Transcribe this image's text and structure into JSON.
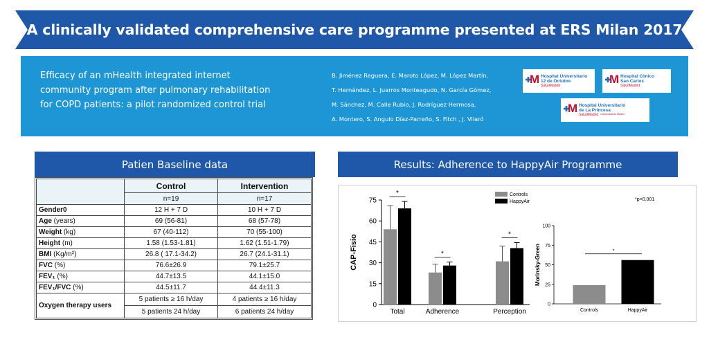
{
  "banner": {
    "title": "A clinically validated comprehensive care programme presented at ERS Milan 2017"
  },
  "study": {
    "title_lines": [
      "Efficacy of an mHealth integrated internet",
      "community program after pulmonary rehabilitation",
      "for COPD patients: a pilot randomized control trial"
    ],
    "authors": [
      "B. Jiménez Reguera, E. Maroto López, M. López Martín,",
      "T. Hernández, L. Juarros Monteagudo, N. García Gómez,",
      "M. Sánchez,  M. Calle Rubio, J. Rodríguez Hermosa,",
      "A. Montero, S. Angulo Díaz-Parreño, S. Fitch , J. Vilaró"
    ]
  },
  "logos": [
    {
      "name_1": "Hospital Universitario",
      "name_2": "12 de Octubre",
      "sub": "SaludMadrid"
    },
    {
      "name_1": "Hospital Clínico",
      "name_2": "San Carlos",
      "sub": "SaludMadrid"
    },
    {
      "name_1": "Hospital Universitario",
      "name_2": "de La Princesa",
      "sub": "SaludMadrid",
      "extra": "Comunidad de Madrid"
    }
  ],
  "baseline": {
    "header": "Patien Baseline data",
    "groups": [
      "Control",
      "Intervention"
    ],
    "n": [
      "n=19",
      "n=17"
    ],
    "rows": [
      {
        "label": "Gender0",
        "unit": "",
        "control": "12 H + 7 D",
        "intervention": "10 H + 7 D"
      },
      {
        "label": "Age",
        "unit": "   (years)",
        "control": "69  (56-81)",
        "intervention": "68  (57-78)"
      },
      {
        "label": "Weight",
        "unit": "  (kg)",
        "control": "67  (40-112)",
        "intervention": "70  (55-100)"
      },
      {
        "label": "Height",
        "unit": " (m)",
        "control": "1.58  (1.53-1.81)",
        "intervention": "1.62  (1.51-1.79)"
      },
      {
        "label": "BMI",
        "unit": "  (Kg/m²)",
        "control": "26.8  ( 17.1-34.2)",
        "intervention": "26.7  (24.1-31.1)"
      },
      {
        "label": "FVC",
        "unit": "  (%)",
        "control": "76.6±26.9",
        "intervention": "79.1±25.7"
      },
      {
        "label": "FEV₁",
        "unit": " (%)",
        "control": "44.7±13.5",
        "intervention": "44.1±15.0"
      },
      {
        "label": "FEV₁/FVC",
        "unit": " (%)",
        "control": "44.5±11.7",
        "intervention": "44.4±11.3"
      }
    ],
    "oxygen": {
      "label": "Oxygen therapy users",
      "control": [
        "5 patients    ≥ 16 h/day",
        "5 patients  24 h/day"
      ],
      "intervention": [
        "4 patients    ≥ 16 h/day",
        "6 patients 24 h/day"
      ]
    }
  },
  "results": {
    "header": "Results: Adherence to HappyAir Programme",
    "colors": {
      "controls": "#8c8c8c",
      "happyair": "#000000"
    },
    "chart_data": [
      {
        "type": "bar",
        "ylabel": "CAP-Fisio",
        "ylim": [
          0,
          75
        ],
        "yticks": [
          "0",
          "15",
          "30",
          "45",
          "60",
          "75"
        ],
        "categories": [
          "Total",
          "Adherence",
          "Perception"
        ],
        "series": [
          {
            "name": "Controls",
            "values": [
              54,
              23,
              31
            ],
            "errors": [
              17,
              6,
              11
            ]
          },
          {
            "name": "HappyAir",
            "values": [
              69,
              28,
              40.5
            ],
            "errors": [
              5,
              2.5,
              4
            ]
          }
        ],
        "significance": [
          "*",
          "*",
          "*"
        ],
        "legend": "top-right",
        "note": "*p<0.001"
      },
      {
        "type": "bar",
        "ylabel": "Morinsky-Green",
        "ylim": [
          0,
          100
        ],
        "yticks": [
          "0",
          "25",
          "50",
          "75",
          "100"
        ],
        "categories": [
          "Controls",
          "HappyAir"
        ],
        "values": [
          24,
          56
        ],
        "significance": "*"
      }
    ]
  }
}
